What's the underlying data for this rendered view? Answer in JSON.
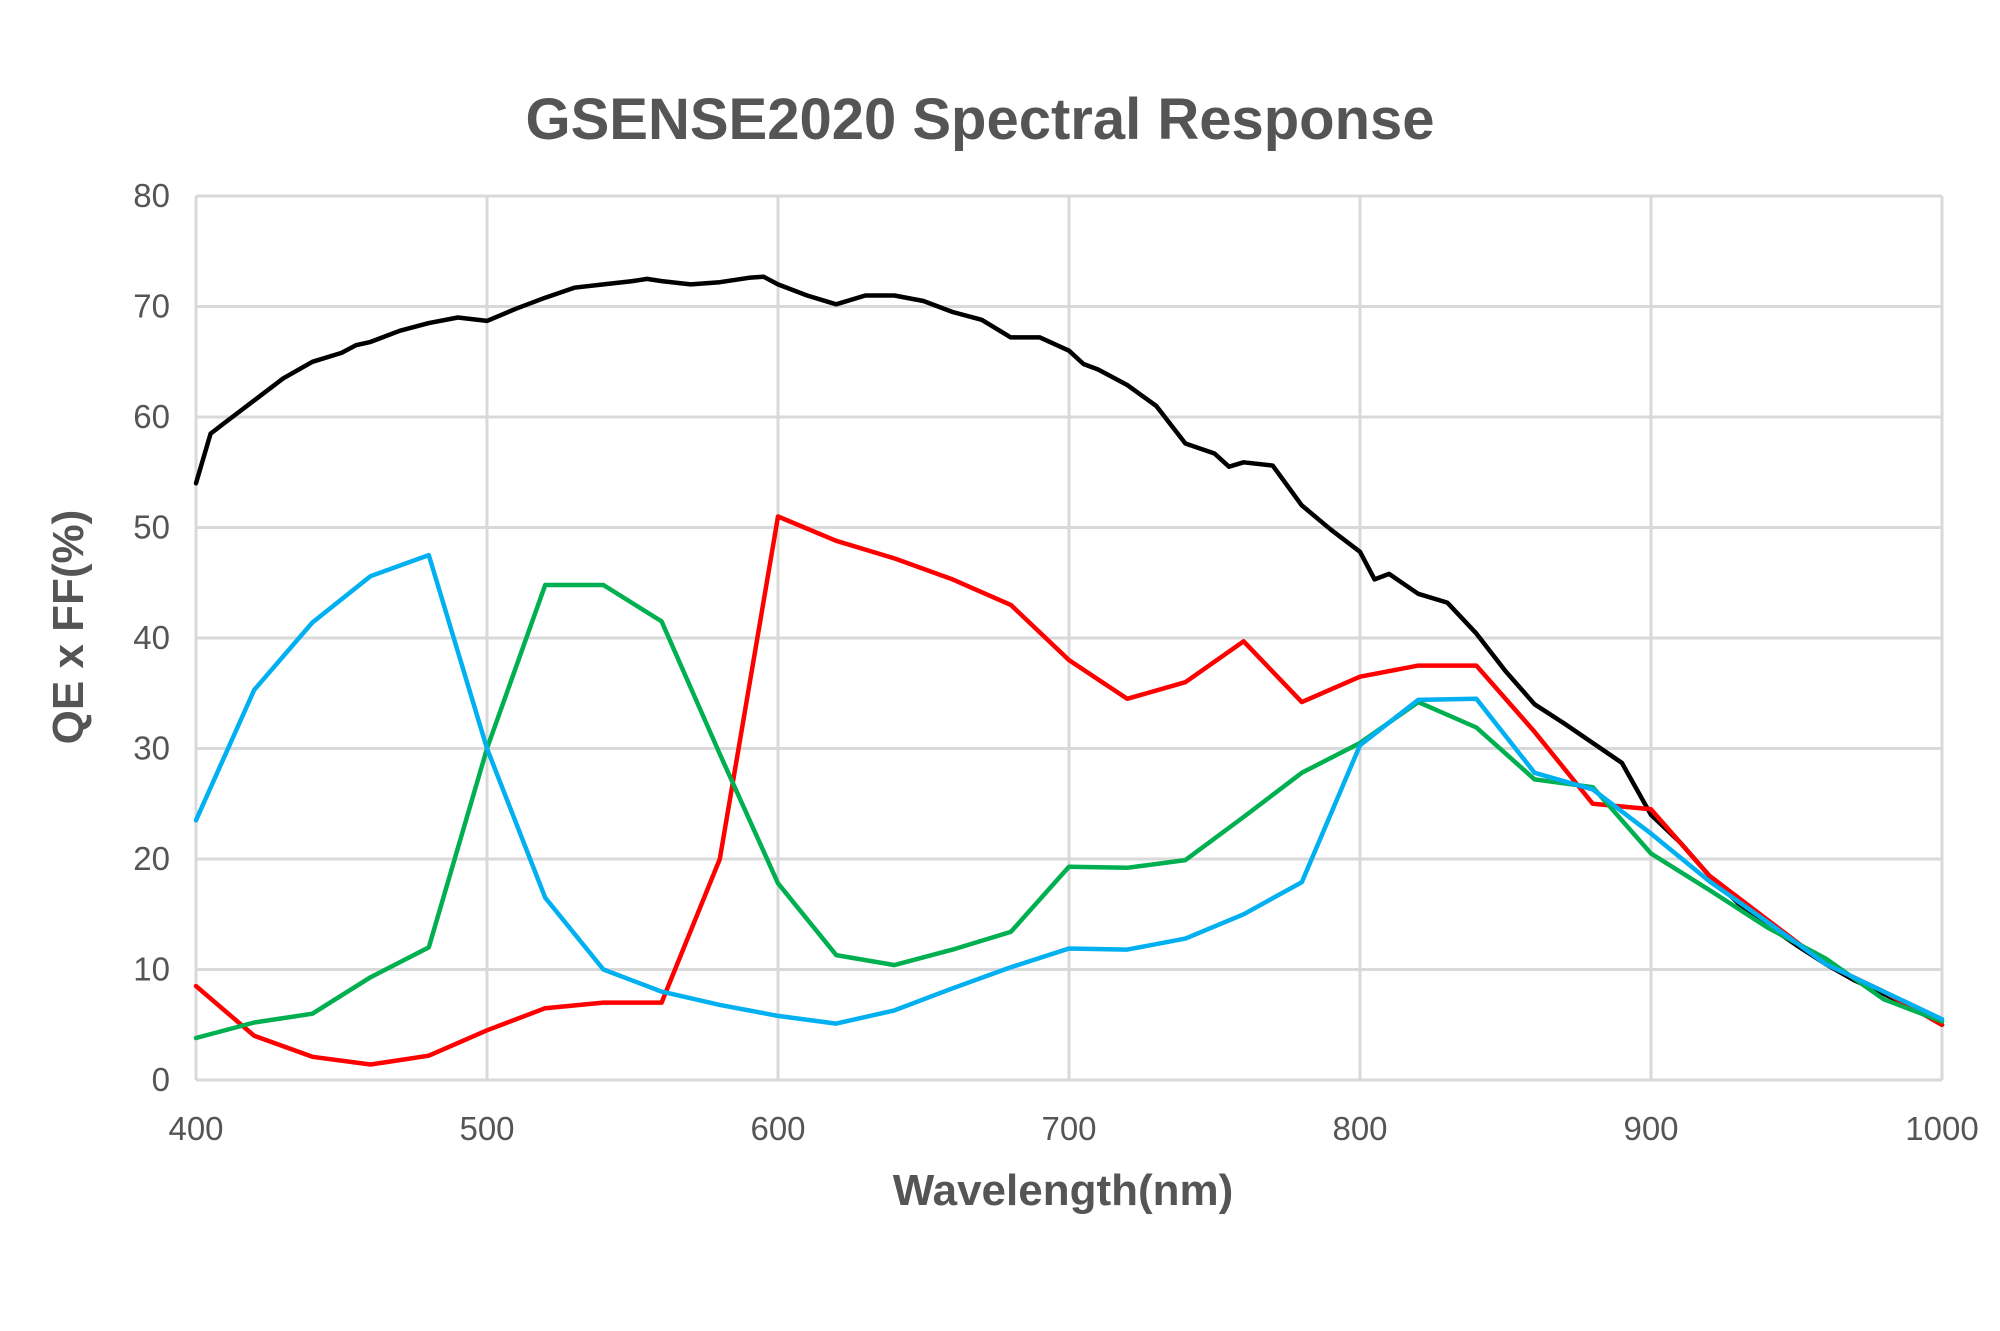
{
  "chart_data": {
    "type": "line",
    "title": "GSENSE2020 Spectral Response",
    "xlabel": "Wavelength(nm)",
    "ylabel": "QE x FF(%)",
    "xlim": [
      400,
      1000
    ],
    "ylim": [
      0,
      80
    ],
    "x_ticks": [
      "400",
      "500",
      "600",
      "700",
      "800",
      "900",
      "1000"
    ],
    "y_ticks": [
      "0",
      "10",
      "20",
      "30",
      "40",
      "50",
      "60",
      "70",
      "80"
    ],
    "grid": true,
    "legend": "none",
    "series": [
      {
        "color": "#000000",
        "points": [
          [
            400,
            54
          ],
          [
            405,
            58.5
          ],
          [
            410,
            59.5
          ],
          [
            420,
            61.5
          ],
          [
            430,
            63.5
          ],
          [
            440,
            65
          ],
          [
            450,
            65.8
          ],
          [
            455,
            66.5
          ],
          [
            460,
            66.8
          ],
          [
            470,
            67.8
          ],
          [
            480,
            68.5
          ],
          [
            490,
            69
          ],
          [
            500,
            68.7
          ],
          [
            510,
            69.8
          ],
          [
            520,
            70.8
          ],
          [
            530,
            71.7
          ],
          [
            540,
            72
          ],
          [
            550,
            72.3
          ],
          [
            555,
            72.5
          ],
          [
            560,
            72.3
          ],
          [
            570,
            72
          ],
          [
            580,
            72.2
          ],
          [
            590,
            72.6
          ],
          [
            595,
            72.7
          ],
          [
            600,
            72
          ],
          [
            610,
            71
          ],
          [
            620,
            70.2
          ],
          [
            630,
            71
          ],
          [
            640,
            71
          ],
          [
            650,
            70.5
          ],
          [
            660,
            69.5
          ],
          [
            670,
            68.8
          ],
          [
            680,
            67.2
          ],
          [
            690,
            67.2
          ],
          [
            700,
            66
          ],
          [
            705,
            64.8
          ],
          [
            710,
            64.3
          ],
          [
            720,
            62.9
          ],
          [
            730,
            61
          ],
          [
            740,
            57.6
          ],
          [
            750,
            56.7
          ],
          [
            755,
            55.5
          ],
          [
            760,
            55.9
          ],
          [
            770,
            55.6
          ],
          [
            780,
            52
          ],
          [
            790,
            49.8
          ],
          [
            800,
            47.8
          ],
          [
            805,
            45.3
          ],
          [
            810,
            45.8
          ],
          [
            820,
            44
          ],
          [
            830,
            43.2
          ],
          [
            840,
            40.4
          ],
          [
            850,
            37
          ],
          [
            860,
            34
          ],
          [
            870,
            32.3
          ],
          [
            880,
            30.5
          ],
          [
            890,
            28.7
          ],
          [
            900,
            24
          ],
          [
            910,
            21.5
          ],
          [
            920,
            18.5
          ],
          [
            930,
            16
          ],
          [
            940,
            14
          ],
          [
            950,
            12.2
          ],
          [
            960,
            10.5
          ],
          [
            970,
            9
          ],
          [
            980,
            7.8
          ],
          [
            990,
            6.5
          ],
          [
            1000,
            5
          ]
        ]
      },
      {
        "color": "#ff0000",
        "points": [
          [
            400,
            8.5
          ],
          [
            420,
            4
          ],
          [
            440,
            2.1
          ],
          [
            460,
            1.4
          ],
          [
            480,
            2.2
          ],
          [
            500,
            4.5
          ],
          [
            520,
            6.5
          ],
          [
            540,
            7
          ],
          [
            560,
            7
          ],
          [
            580,
            20
          ],
          [
            600,
            51
          ],
          [
            620,
            48.8
          ],
          [
            640,
            47.2
          ],
          [
            660,
            45.3
          ],
          [
            680,
            43
          ],
          [
            700,
            38
          ],
          [
            720,
            34.5
          ],
          [
            740,
            36
          ],
          [
            760,
            39.7
          ],
          [
            780,
            34.2
          ],
          [
            800,
            36.5
          ],
          [
            820,
            37.5
          ],
          [
            840,
            37.5
          ],
          [
            860,
            31.5
          ],
          [
            880,
            25
          ],
          [
            900,
            24.5
          ],
          [
            920,
            18.5
          ],
          [
            940,
            14.5
          ],
          [
            960,
            10.5
          ],
          [
            980,
            8
          ],
          [
            1000,
            5
          ]
        ]
      },
      {
        "color": "#00b050",
        "points": [
          [
            400,
            3.8
          ],
          [
            420,
            5.2
          ],
          [
            440,
            6
          ],
          [
            460,
            9.3
          ],
          [
            480,
            12
          ],
          [
            500,
            30
          ],
          [
            520,
            44.8
          ],
          [
            540,
            44.8
          ],
          [
            560,
            41.5
          ],
          [
            580,
            29.5
          ],
          [
            600,
            17.8
          ],
          [
            620,
            11.3
          ],
          [
            640,
            10.4
          ],
          [
            660,
            11.8
          ],
          [
            680,
            13.4
          ],
          [
            700,
            19.3
          ],
          [
            720,
            19.2
          ],
          [
            740,
            19.9
          ],
          [
            760,
            23.8
          ],
          [
            780,
            27.8
          ],
          [
            800,
            30.5
          ],
          [
            820,
            34.2
          ],
          [
            840,
            31.9
          ],
          [
            860,
            27.2
          ],
          [
            880,
            26.5
          ],
          [
            900,
            20.5
          ],
          [
            920,
            17.2
          ],
          [
            940,
            13.8
          ],
          [
            960,
            11
          ],
          [
            980,
            7.3
          ],
          [
            1000,
            5.3
          ]
        ]
      },
      {
        "color": "#00b0f0",
        "points": [
          [
            400,
            23.5
          ],
          [
            420,
            35.3
          ],
          [
            440,
            41.4
          ],
          [
            460,
            45.6
          ],
          [
            480,
            47.5
          ],
          [
            500,
            30
          ],
          [
            520,
            16.5
          ],
          [
            540,
            10
          ],
          [
            560,
            8
          ],
          [
            580,
            6.8
          ],
          [
            600,
            5.8
          ],
          [
            620,
            5.1
          ],
          [
            640,
            6.3
          ],
          [
            660,
            8.3
          ],
          [
            680,
            10.2
          ],
          [
            700,
            11.9
          ],
          [
            720,
            11.8
          ],
          [
            740,
            12.8
          ],
          [
            760,
            15
          ],
          [
            780,
            17.9
          ],
          [
            800,
            30.3
          ],
          [
            820,
            34.4
          ],
          [
            840,
            34.5
          ],
          [
            860,
            27.8
          ],
          [
            880,
            26.3
          ],
          [
            900,
            22.3
          ],
          [
            920,
            18
          ],
          [
            940,
            14.3
          ],
          [
            960,
            10.5
          ],
          [
            980,
            8
          ],
          [
            1000,
            5.5
          ]
        ]
      }
    ]
  }
}
